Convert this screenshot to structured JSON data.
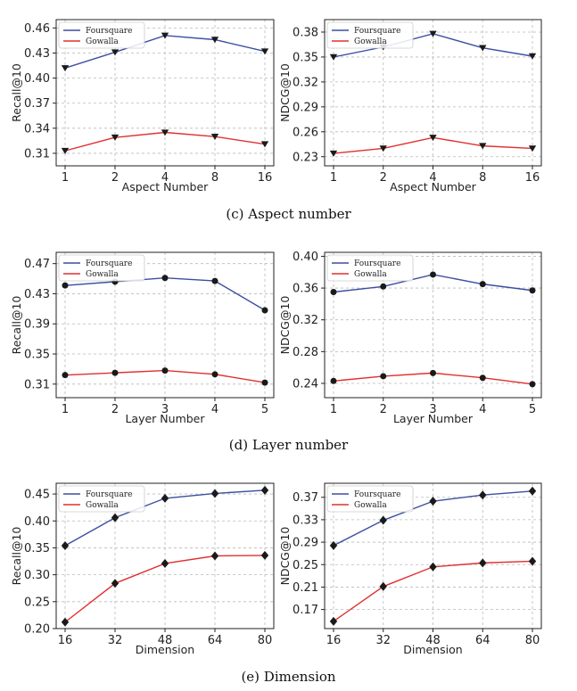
{
  "colors": {
    "series_0": "#3b4fa0",
    "series_1": "#e0302f",
    "grid": "#b9b9b9",
    "marker": "#1a1a1a"
  },
  "captions": [
    "(c)  Aspect number",
    "(d)  Layer number",
    "(e)  Dimension"
  ],
  "chart_data": [
    {
      "type": "line",
      "marker": "triangle-down",
      "x": [
        "1",
        "2",
        "4",
        "8",
        "16"
      ],
      "xlabel": "Aspect Number",
      "ylabel": "Recall@10",
      "yticks": [
        0.31,
        0.34,
        0.37,
        0.4,
        0.43,
        0.46
      ],
      "ytick_labels": [
        "0.31",
        "0.34",
        "0.37",
        "0.40",
        "0.43",
        "0.46"
      ],
      "ylim": [
        0.295,
        0.47
      ],
      "grid": true,
      "legend": "top-left",
      "series": [
        {
          "name": "Foursquare",
          "values": [
            0.412,
            0.431,
            0.451,
            0.446,
            0.432
          ]
        },
        {
          "name": "Gowalla",
          "values": [
            0.313,
            0.329,
            0.335,
            0.33,
            0.321
          ]
        }
      ]
    },
    {
      "type": "line",
      "marker": "triangle-down",
      "x": [
        "1",
        "2",
        "4",
        "8",
        "16"
      ],
      "xlabel": "Aspect Number",
      "ylabel": "NDCG@10",
      "yticks": [
        0.23,
        0.26,
        0.29,
        0.32,
        0.35,
        0.38
      ],
      "ytick_labels": [
        "0.23",
        "0.26",
        "0.29",
        "0.32",
        "0.35",
        "0.38"
      ],
      "ylim": [
        0.219,
        0.395
      ],
      "grid": true,
      "legend": "top-left",
      "series": [
        {
          "name": "Foursquare",
          "values": [
            0.35,
            0.362,
            0.378,
            0.361,
            0.351
          ]
        },
        {
          "name": "Gowalla",
          "values": [
            0.234,
            0.24,
            0.253,
            0.243,
            0.24
          ]
        }
      ]
    },
    {
      "type": "line",
      "marker": "circle",
      "x": [
        "1",
        "2",
        "3",
        "4",
        "5"
      ],
      "xlabel": "Layer Number",
      "ylabel": "Recall@10",
      "yticks": [
        0.31,
        0.35,
        0.39,
        0.43,
        0.47
      ],
      "ytick_labels": [
        "0.31",
        "0.35",
        "0.39",
        "0.43",
        "0.47"
      ],
      "ylim": [
        0.292,
        0.485
      ],
      "grid": true,
      "legend": "top-left",
      "series": [
        {
          "name": "Foursquare",
          "values": [
            0.441,
            0.446,
            0.451,
            0.447,
            0.408
          ]
        },
        {
          "name": "Gowalla",
          "values": [
            0.322,
            0.325,
            0.328,
            0.323,
            0.312
          ]
        }
      ]
    },
    {
      "type": "line",
      "marker": "circle",
      "x": [
        "1",
        "2",
        "3",
        "4",
        "5"
      ],
      "xlabel": "Layer Number",
      "ylabel": "NDCG@10",
      "yticks": [
        0.24,
        0.28,
        0.32,
        0.36,
        0.4
      ],
      "ytick_labels": [
        "0.24",
        "0.28",
        "0.32",
        "0.36",
        "0.40"
      ],
      "ylim": [
        0.222,
        0.405
      ],
      "grid": true,
      "legend": "top-left",
      "series": [
        {
          "name": "Foursquare",
          "values": [
            0.355,
            0.362,
            0.377,
            0.365,
            0.357
          ]
        },
        {
          "name": "Gowalla",
          "values": [
            0.243,
            0.249,
            0.253,
            0.247,
            0.239
          ]
        }
      ]
    },
    {
      "type": "line",
      "marker": "diamond",
      "x": [
        "16",
        "32",
        "48",
        "64",
        "80"
      ],
      "xlabel": "Dimension",
      "ylabel": "Recall@10",
      "yticks": [
        0.2,
        0.25,
        0.3,
        0.35,
        0.4,
        0.45
      ],
      "ytick_labels": [
        "0.20",
        "0.25",
        "0.30",
        "0.35",
        "0.40",
        "0.45"
      ],
      "ylim": [
        0.2,
        0.47
      ],
      "grid": true,
      "legend": "top-left",
      "series": [
        {
          "name": "Foursquare",
          "values": [
            0.354,
            0.406,
            0.442,
            0.451,
            0.457
          ]
        },
        {
          "name": "Gowalla",
          "values": [
            0.212,
            0.284,
            0.321,
            0.335,
            0.336
          ]
        }
      ]
    },
    {
      "type": "line",
      "marker": "diamond",
      "x": [
        "16",
        "32",
        "48",
        "64",
        "80"
      ],
      "xlabel": "Dimension",
      "ylabel": "NDCG@10",
      "yticks": [
        0.17,
        0.21,
        0.25,
        0.29,
        0.33,
        0.37
      ],
      "ytick_labels": [
        "0.17",
        "0.21",
        "0.25",
        "0.29",
        "0.33",
        "0.37"
      ],
      "ylim": [
        0.136,
        0.395
      ],
      "grid": true,
      "legend": "top-left",
      "series": [
        {
          "name": "Foursquare",
          "values": [
            0.284,
            0.329,
            0.363,
            0.374,
            0.381
          ]
        },
        {
          "name": "Gowalla",
          "values": [
            0.149,
            0.211,
            0.246,
            0.253,
            0.256
          ]
        }
      ]
    }
  ]
}
